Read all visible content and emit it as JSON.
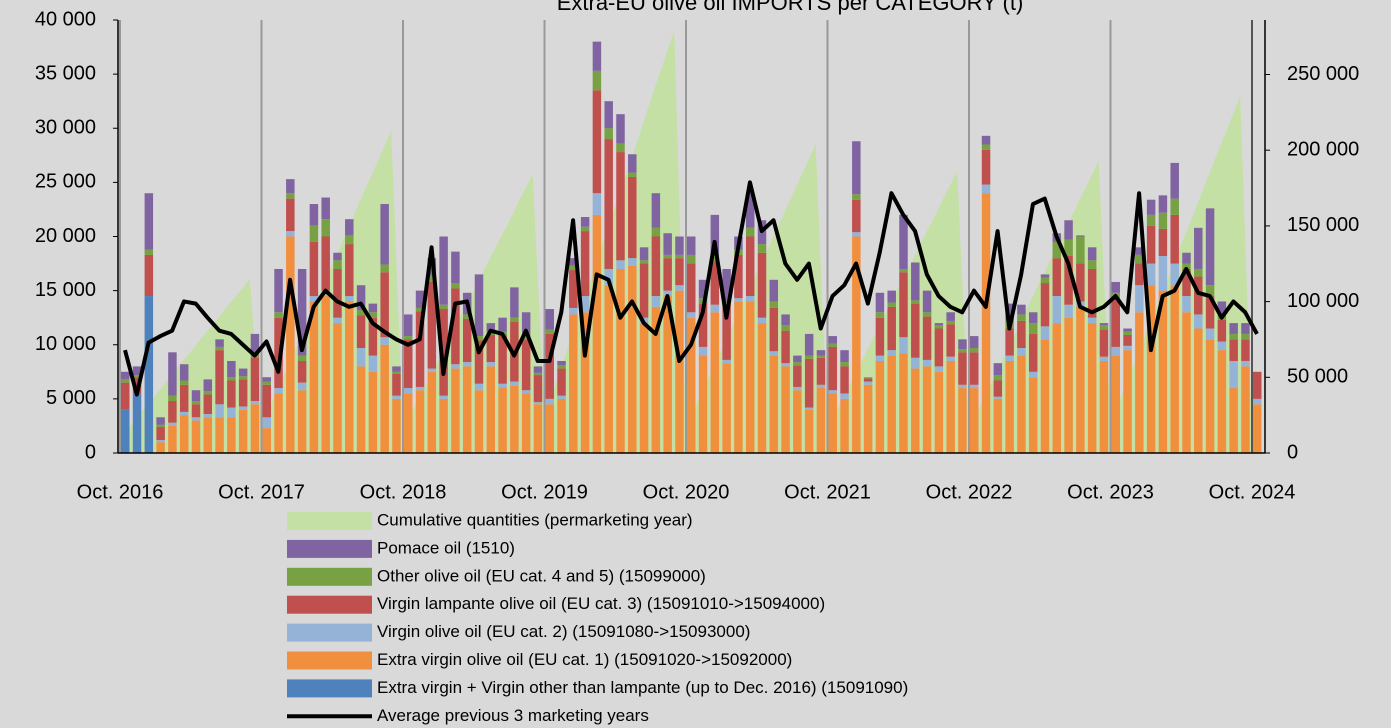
{
  "chart_data": {
    "type": "bar",
    "title": "Extra-EU olive oil IMPORTS per CATEGORY (t)",
    "categories": [
      "Oct. 2016",
      null,
      null,
      null,
      null,
      null,
      null,
      null,
      null,
      null,
      null,
      null,
      "Oct. 2017",
      null,
      null,
      null,
      null,
      null,
      null,
      null,
      null,
      null,
      null,
      null,
      "Oct. 2018",
      null,
      null,
      null,
      null,
      null,
      null,
      null,
      null,
      null,
      null,
      null,
      "Oct. 2019",
      null,
      null,
      null,
      null,
      null,
      null,
      null,
      null,
      null,
      null,
      null,
      "Oct. 2020",
      null,
      null,
      null,
      null,
      null,
      null,
      null,
      null,
      null,
      null,
      null,
      "Oct. 2021",
      null,
      null,
      null,
      null,
      null,
      null,
      null,
      null,
      null,
      null,
      null,
      "Oct. 2022",
      null,
      null,
      null,
      null,
      null,
      null,
      null,
      null,
      null,
      null,
      null,
      "Oct. 2023",
      null,
      null,
      null,
      null,
      null,
      null,
      null,
      null,
      null,
      null,
      null,
      "Oct. 2024"
    ],
    "ylim": [
      0,
      40000
    ],
    "yticks": [
      0,
      {
        "value": 5000,
        "label": "5 000"
      },
      {
        "value": 10000,
        "label": "10 000"
      },
      {
        "value": 15000,
        "label": "15 000"
      },
      {
        "value": 20000,
        "label": "20 000"
      },
      {
        "value": 25000,
        "label": "25 000"
      },
      {
        "value": 30000,
        "label": "30 000"
      },
      {
        "value": 35000,
        "label": "35 000"
      },
      {
        "value": 40000,
        "label": "40 000"
      }
    ],
    "y2lim": [
      0,
      286000
    ],
    "y2ticks": [
      0,
      {
        "value": 50000,
        "label": "50 000"
      },
      {
        "value": 100000,
        "label": "100 000"
      },
      {
        "value": 150000,
        "label": "150 000"
      },
      {
        "value": 200000,
        "label": "200 000"
      },
      {
        "value": 250000,
        "label": "250 000"
      }
    ],
    "series": [
      {
        "name": "Cumulative quantities (permarketing year)",
        "type": "area",
        "axis": "y2",
        "color": "#c5e0a5",
        "values": [
          10000,
          19000,
          29000,
          38000,
          48000,
          58000,
          67000,
          77000,
          86000,
          96000,
          105000,
          115000,
          18000,
          36000,
          53000,
          71000,
          89000,
          107000,
          124000,
          142000,
          160000,
          178000,
          195000,
          213000,
          15000,
          31000,
          46000,
          61000,
          77000,
          92000,
          107000,
          123000,
          138000,
          153000,
          169000,
          184000,
          23000,
          47000,
          70000,
          93000,
          116000,
          140000,
          163000,
          186000,
          209000,
          233000,
          256000,
          279000,
          17000,
          34000,
          51000,
          68000,
          85000,
          102000,
          119000,
          136000,
          153000,
          170000,
          187000,
          204000,
          16000,
          31000,
          47000,
          62000,
          78000,
          93000,
          109000,
          124000,
          140000,
          155000,
          171000,
          186000,
          16000,
          32000,
          48000,
          64000,
          80000,
          97000,
          113000,
          129000,
          145000,
          161000,
          177000,
          193000,
          20000,
          39000,
          59000,
          79000,
          98000,
          118000,
          138000,
          157000,
          177000,
          197000,
          216000,
          236000,
          12000
        ]
      },
      {
        "name": "Pomace oil  (1510)",
        "type": "bar",
        "color": "#8064a2",
        "values": [
          700,
          800,
          5200,
          700,
          4000,
          1500,
          1000,
          1100,
          700,
          1500,
          700,
          1700,
          400,
          4000,
          1300,
          8000,
          2000,
          2000,
          700,
          1500,
          2300,
          800,
          5600,
          500,
          2000,
          1600,
          1600,
          6300,
          2900,
          2000,
          5700,
          800,
          1300,
          2800,
          2000,
          600,
          1900,
          400,
          700,
          900,
          2700,
          2500,
          2700,
          1700,
          1200,
          3200,
          2000,
          1700,
          1700,
          1700,
          3500,
          3000,
          1200,
          3200,
          2200,
          2000,
          1000,
          600,
          2000,
          500,
          700,
          1100,
          4900,
          0,
          1800,
          1100,
          5000,
          3500,
          2000,
          200,
          800,
          900,
          1100,
          800,
          1100,
          1600,
          900,
          1000,
          300,
          800,
          1800,
          100,
          1200,
          200,
          1000,
          300,
          700,
          1400,
          1600,
          3300,
          1000,
          3800,
          7100,
          1200,
          1000,
          1000,
          0
        ]
      },
      {
        "name": "Other olive oil (EU cat. 4 and 5) (15099000)",
        "type": "bar",
        "color": "#77a143",
        "values": [
          300,
          200,
          500,
          200,
          500,
          400,
          300,
          300,
          300,
          300,
          300,
          500,
          300,
          500,
          500,
          500,
          1500,
          1600,
          800,
          800,
          500,
          500,
          700,
          200,
          300,
          300,
          600,
          400,
          500,
          400,
          400,
          300,
          300,
          400,
          500,
          200,
          400,
          300,
          400,
          400,
          1800,
          1000,
          800,
          400,
          300,
          800,
          300,
          300,
          800,
          500,
          800,
          400,
          500,
          800,
          800,
          600,
          500,
          300,
          300,
          200,
          300,
          400,
          500,
          100,
          500,
          400,
          300,
          300,
          400,
          300,
          300,
          300,
          400,
          500,
          500,
          700,
          600,
          1000,
          500,
          1500,
          1500,
          2500,
          800,
          400,
          500,
          300,
          800,
          1000,
          1500,
          1500,
          500,
          700,
          1000,
          500,
          500,
          500,
          0
        ]
      },
      {
        "name": "Virgin lampante olive oil (EU cat. 3) (15091010->15094000)",
        "type": "bar",
        "color": "#c0504d",
        "values": [
          2500,
          1500,
          3800,
          1200,
          2000,
          2500,
          1200,
          1800,
          5000,
          2500,
          2500,
          4000,
          3000,
          6500,
          3000,
          2000,
          5000,
          5000,
          4500,
          4800,
          3000,
          3500,
          6000,
          2000,
          4500,
          7000,
          8000,
          8000,
          7000,
          4000,
          4000,
          2500,
          4500,
          5500,
          4700,
          2500,
          6000,
          2500,
          3500,
          6000,
          9500,
          12000,
          10000,
          7500,
          5000,
          5500,
          3000,
          2500,
          4500,
          4000,
          4000,
          5000,
          4000,
          5500,
          6000,
          4000,
          3000,
          2000,
          4500,
          2500,
          4000,
          2500,
          3000,
          300,
          3500,
          4000,
          6000,
          5000,
          4000,
          3500,
          3000,
          3000,
          3000,
          3200,
          1500,
          2500,
          2500,
          3500,
          4000,
          3500,
          4500,
          3500,
          4500,
          2500,
          4500,
          1000,
          2000,
          3500,
          2500,
          4500,
          2500,
          3500,
          3000,
          2000,
          2000,
          2000,
          2500
        ]
      },
      {
        "name": "Virgin olive oil (EU cat. 2) (15091080->15093000)",
        "type": "bar",
        "color": "#95b3d7",
        "values": [
          0,
          0,
          0,
          200,
          300,
          300,
          300,
          300,
          1200,
          900,
          300,
          300,
          1000,
          500,
          500,
          700,
          500,
          500,
          500,
          500,
          1700,
          1500,
          700,
          300,
          500,
          300,
          300,
          300,
          400,
          400,
          600,
          400,
          400,
          400,
          300,
          200,
          500,
          300,
          600,
          1500,
          2000,
          1500,
          800,
          700,
          500,
          1000,
          500,
          500,
          500,
          800,
          700,
          300,
          300,
          500,
          500,
          400,
          300,
          300,
          200,
          300,
          300,
          500,
          400,
          300,
          500,
          500,
          1500,
          1000,
          600,
          500,
          400,
          300,
          300,
          800,
          200,
          500,
          700,
          500,
          1200,
          2500,
          1200,
          500,
          500,
          400,
          800,
          400,
          2500,
          2000,
          3200,
          2000,
          1500,
          1300,
          1000,
          800,
          2500,
          500,
          500
        ]
      },
      {
        "name": "Extra virgin olive oil (EU cat. 1) (15091020->15092000)",
        "type": "bar",
        "color": "#f0903f",
        "values": [
          0,
          0,
          0,
          1000,
          2500,
          3500,
          3000,
          3300,
          3300,
          3300,
          4000,
          4500,
          2300,
          5500,
          20000,
          5800,
          14000,
          14500,
          12000,
          14000,
          8000,
          7500,
          10000,
          5000,
          5500,
          5800,
          7500,
          5000,
          7800,
          8000,
          5800,
          8000,
          6000,
          6200,
          5500,
          4500,
          4500,
          5000,
          12800,
          13000,
          22000,
          15500,
          17000,
          17300,
          12000,
          13500,
          14500,
          15000,
          12500,
          9000,
          13000,
          8300,
          14000,
          14000,
          12000,
          9000,
          8000,
          5800,
          4000,
          6000,
          5500,
          5000,
          20000,
          6300,
          8500,
          9000,
          9200,
          7800,
          8000,
          7500,
          8500,
          6000,
          6000,
          24000,
          5000,
          8500,
          9000,
          7000,
          10500,
          12000,
          12500,
          13500,
          12000,
          8500,
          9000,
          9500,
          13000,
          15500,
          15000,
          15500,
          13000,
          11500,
          10500,
          9500,
          6000,
          8000,
          4500
        ]
      },
      {
        "name": "Extra virgin + Virgin other than lampante (up to Dec. 2016) (15091090)",
        "type": "bar",
        "color": "#4f81bd",
        "values": [
          4000,
          5500,
          14500,
          0,
          0,
          0,
          0,
          0,
          0,
          0,
          0,
          0,
          0,
          0,
          0,
          0,
          0,
          0,
          0,
          0,
          0,
          0,
          0,
          0,
          0,
          0,
          0,
          0,
          0,
          0,
          0,
          0,
          0,
          0,
          0,
          0,
          0,
          0,
          0,
          0,
          0,
          0,
          0,
          0,
          0,
          0,
          0,
          0,
          0,
          0,
          0,
          0,
          0,
          0,
          0,
          0,
          0,
          0,
          0,
          0,
          0,
          0,
          0,
          0,
          0,
          0,
          0,
          0,
          0,
          0,
          0,
          0,
          0,
          0,
          0,
          0,
          0,
          0,
          0,
          0,
          0,
          0,
          0,
          0,
          0,
          0,
          0,
          0,
          0,
          0,
          0,
          0,
          0,
          0,
          0,
          0,
          0
        ]
      },
      {
        "name": "Average previous 3 marketing years",
        "type": "line",
        "color": "#000000",
        "values": [
          9500,
          5400,
          10200,
          10800,
          11300,
          14000,
          13800,
          12500,
          11300,
          11000,
          10000,
          9000,
          10300,
          7500,
          16000,
          9500,
          13500,
          15000,
          14000,
          13500,
          13800,
          12000,
          11200,
          10500,
          10000,
          10500,
          19000,
          7300,
          13800,
          14000,
          9300,
          11300,
          11000,
          9000,
          11300,
          8500,
          8500,
          13000,
          21500,
          9000,
          16500,
          16000,
          12500,
          14000,
          12000,
          11000,
          14500,
          8500,
          10000,
          13000,
          19500,
          12500,
          19000,
          25000,
          20500,
          21500,
          17500,
          16000,
          17500,
          11500,
          14500,
          15500,
          17500,
          13800,
          18500,
          24000,
          22000,
          20500,
          16500,
          14500,
          13500,
          13000,
          15000,
          13500,
          20500,
          11500,
          16500,
          23000,
          23500,
          20000,
          17500,
          13500,
          13000,
          13500,
          14500,
          13000,
          24000,
          9500,
          14500,
          15000,
          17000,
          14800,
          14500,
          12500,
          14000,
          13000,
          11000
        ]
      }
    ]
  }
}
